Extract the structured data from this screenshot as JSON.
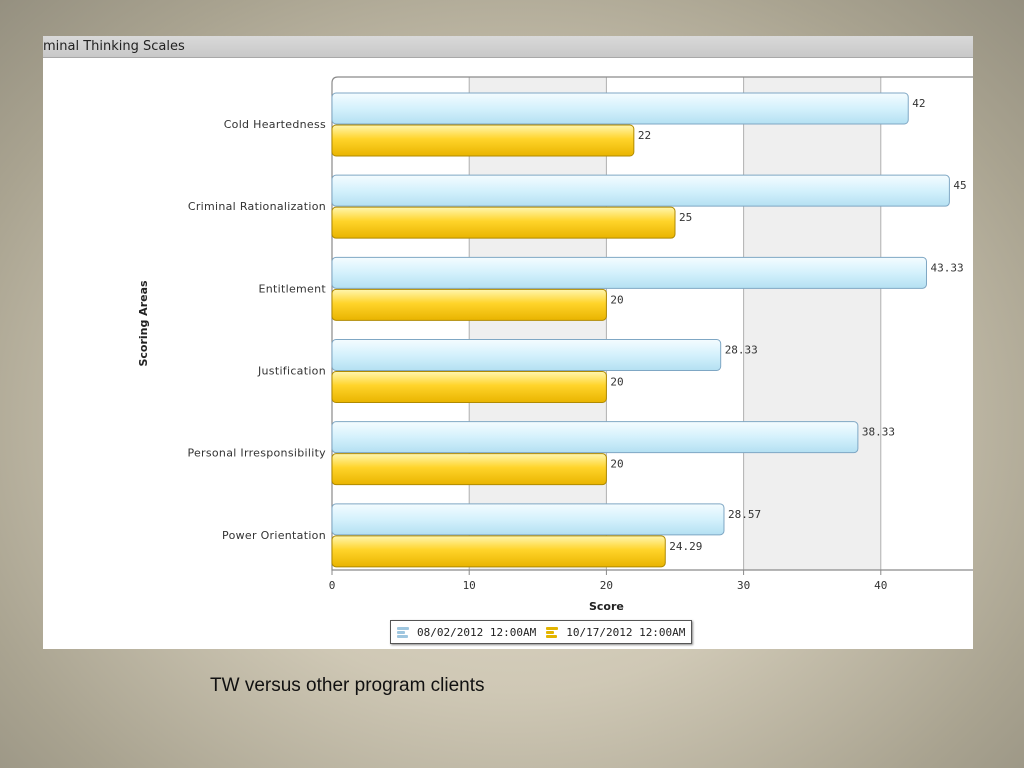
{
  "panel": {
    "title": "minal Thinking Scales"
  },
  "caption": "TW versus other program clients",
  "colors": {
    "series1": "#cdeefb",
    "series1_border": "#7fa7c4",
    "series2": "#f7cc1c",
    "series2_border": "#b08a00",
    "band": "#efefef",
    "grid": "#b0b0b0"
  },
  "legend": {
    "items": [
      {
        "label": "08/02/2012 12:00AM",
        "icon": "blue-bars-icon"
      },
      {
        "label": "10/17/2012 12:00AM",
        "icon": "yellow-bars-icon"
      }
    ]
  },
  "chart_data": {
    "type": "bar",
    "orientation": "horizontal",
    "categories": [
      "Cold Heartedness",
      "Criminal Rationalization",
      "Entitlement",
      "Justification",
      "Personal Irresponsibility",
      "Power Orientation"
    ],
    "series": [
      {
        "name": "08/02/2012 12:00AM",
        "values": [
          42,
          45,
          43.33,
          28.33,
          38.33,
          28.57
        ],
        "labels": [
          "42",
          "45",
          "43.33",
          "28.33",
          "38.33",
          "28.57"
        ]
      },
      {
        "name": "10/17/2012 12:00AM",
        "values": [
          22,
          25,
          20,
          20,
          20,
          24.29
        ],
        "labels": [
          "22",
          "25",
          "20",
          "20",
          "20",
          "24.29"
        ]
      }
    ],
    "xlabel": "Score",
    "ylabel": "Scoring Areas",
    "xlim": [
      0,
      47
    ],
    "xticks": [
      0,
      10,
      20,
      30,
      40
    ],
    "grid": true,
    "alternating_bands": true,
    "legend_position": "bottom"
  }
}
